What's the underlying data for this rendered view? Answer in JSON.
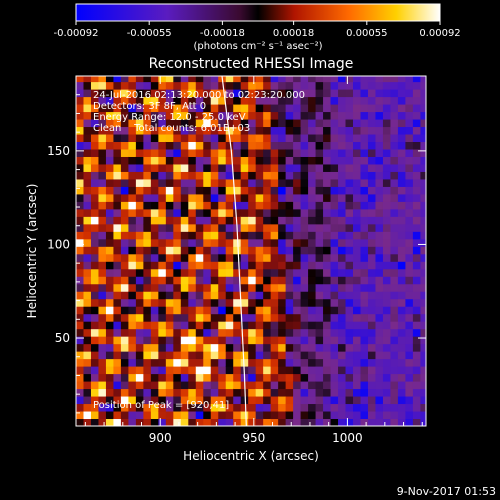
{
  "chart_data": {
    "type": "heatmap",
    "title": "Reconstructed RHESSI Image",
    "xlabel": "Heliocentric X (arcsec)",
    "ylabel": "Heliocentric Y (arcsec)",
    "xlim": [
      855,
      1042
    ],
    "ylim": [
      3,
      190
    ],
    "x_ticks": [
      900,
      950,
      1000
    ],
    "y_ticks": [
      50,
      100,
      150
    ],
    "x_tick_labels": [
      "900",
      "950",
      "1000"
    ],
    "y_tick_labels": [
      "50",
      "100",
      "150"
    ],
    "colorbar": {
      "range": [
        -0.00092,
        0.00092
      ],
      "ticks": [
        -0.00092,
        -0.00055,
        -0.00018,
        0.00018,
        0.00055,
        0.00092
      ],
      "tick_labels": [
        "-0.00092",
        "-0.00055",
        "-0.00018",
        "0.00018",
        "0.00055",
        "0.00092"
      ],
      "unit_label": "(photons cm⁻² s⁻¹ asec⁻²)"
    },
    "annotations": [
      "24-Jul-2016 02:13:20.000 to 02:23:20.000",
      "Detectors: 3F 8F, Att 0",
      "Energy Range: 12.0 - 25.0 keV",
      "Clean    Total counts: 6.01E+03"
    ],
    "peak_label": "Position of Peak = [920,41]",
    "peak": [
      920,
      41
    ],
    "limb_curve": [
      [
        933,
        190
      ],
      [
        938,
        150
      ],
      [
        941,
        110
      ],
      [
        943,
        70
      ],
      [
        945,
        30
      ],
      [
        946,
        3
      ]
    ],
    "grid_cell_arcsec": 4,
    "grid": false
  },
  "footer": {
    "timestamp": "9-Nov-2017 01:53"
  },
  "colors": {
    "background": "#000000",
    "text": "#ffffff",
    "colormap": [
      "#0000ff",
      "#5018c0",
      "#7a2a8a",
      "#000000",
      "#8a1010",
      "#d23000",
      "#ff7800",
      "#ffd000",
      "#ffffff"
    ]
  }
}
